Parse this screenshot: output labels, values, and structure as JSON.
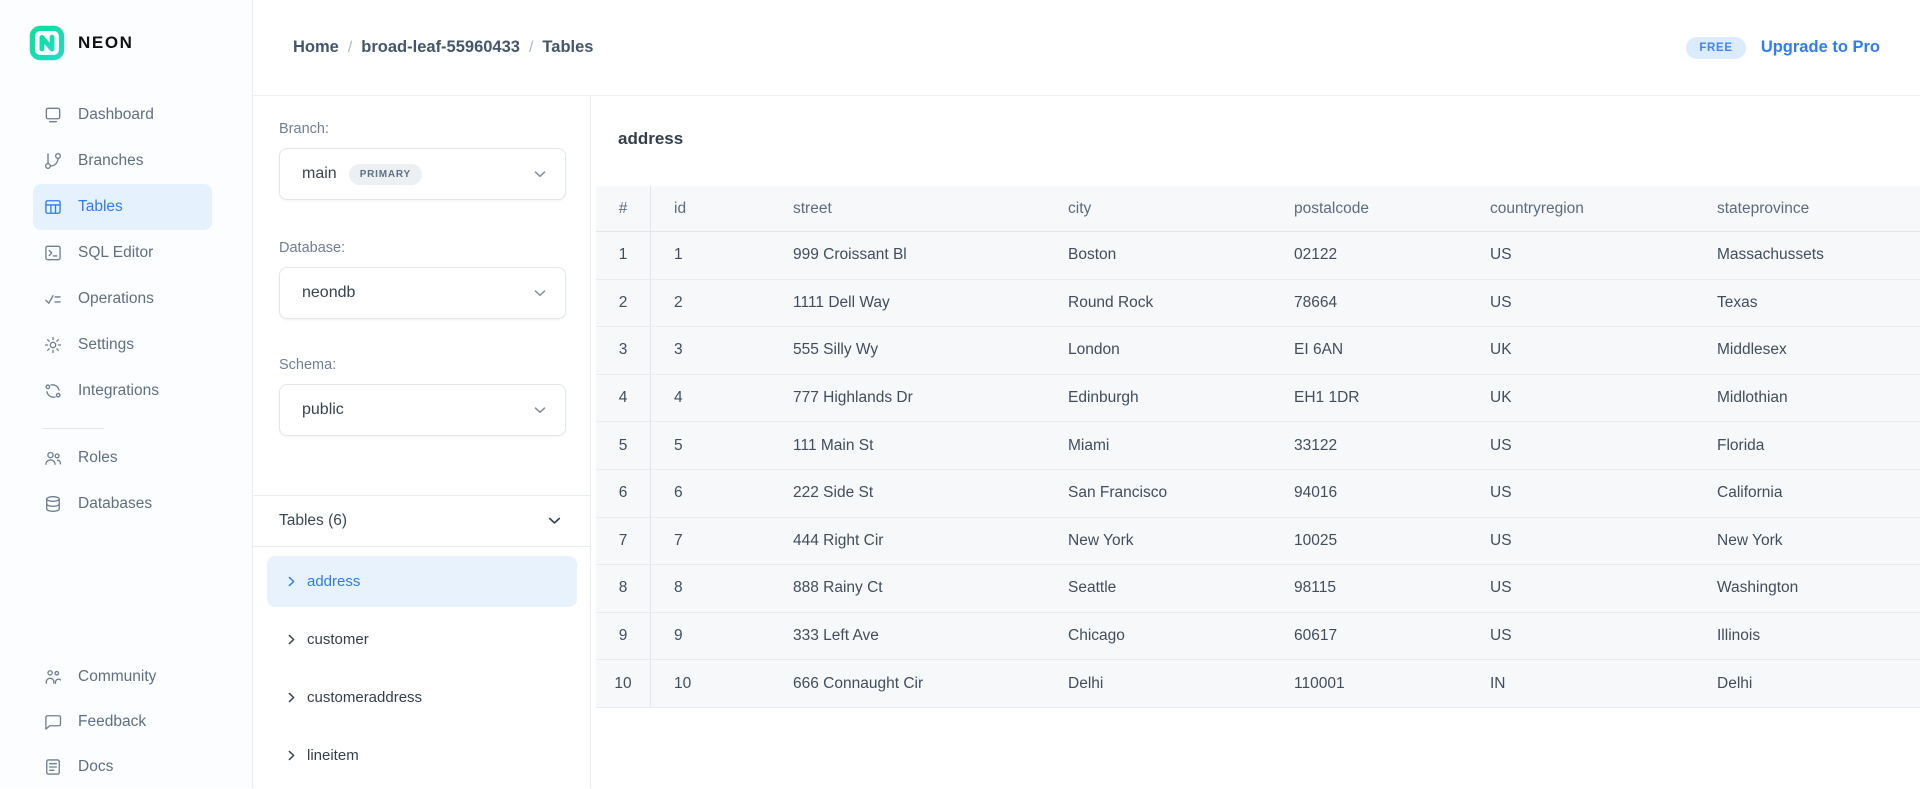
{
  "brand": {
    "name": "NEON"
  },
  "colors": {
    "accent_blue": "#2e7cf6",
    "brand_green": "#00e599",
    "active_item_bg": "#e5f1fd",
    "table_row_bg": "#f6f8fa",
    "badge_bg": "#dcebfe"
  },
  "sidebar": {
    "items": [
      {
        "label": "Dashboard",
        "active": false
      },
      {
        "label": "Branches",
        "active": false
      },
      {
        "label": "Tables",
        "active": true
      },
      {
        "label": "SQL Editor",
        "active": false
      },
      {
        "label": "Operations",
        "active": false
      },
      {
        "label": "Settings",
        "active": false
      },
      {
        "label": "Integrations",
        "active": false
      },
      {
        "label": "Roles",
        "active": false
      },
      {
        "label": "Databases",
        "active": false
      }
    ],
    "footer_items": [
      {
        "label": "Community"
      },
      {
        "label": "Feedback"
      },
      {
        "label": "Docs"
      }
    ]
  },
  "header": {
    "breadcrumb": [
      "Home",
      "broad-leaf-55960433",
      "Tables"
    ],
    "separator": "/",
    "plan_badge": "FREE",
    "upgrade_label": "Upgrade to Pro"
  },
  "panel": {
    "branch_label": "Branch:",
    "branch_value": "main",
    "branch_badge": "PRIMARY",
    "database_label": "Database:",
    "database_value": "neondb",
    "schema_label": "Schema:",
    "schema_value": "public",
    "tables_header": "Tables (6)",
    "tables": [
      {
        "name": "address",
        "selected": true
      },
      {
        "name": "customer",
        "selected": false
      },
      {
        "name": "customeraddress",
        "selected": false
      },
      {
        "name": "lineitem",
        "selected": false
      }
    ]
  },
  "main": {
    "title": "address",
    "table": {
      "columns": [
        "#",
        "id",
        "street",
        "city",
        "postalcode",
        "countryregion",
        "stateprovince"
      ],
      "rows": [
        [
          "1",
          "1",
          "999 Croissant Bl",
          "Boston",
          "02122",
          "US",
          "Massachussets"
        ],
        [
          "2",
          "2",
          "1111 Dell Way",
          "Round Rock",
          "78664",
          "US",
          "Texas"
        ],
        [
          "3",
          "3",
          "555 Silly Wy",
          "London",
          "EI 6AN",
          "UK",
          "Middlesex"
        ],
        [
          "4",
          "4",
          "777 Highlands Dr",
          "Edinburgh",
          "EH1 1DR",
          "UK",
          "Midlothian"
        ],
        [
          "5",
          "5",
          "111 Main St",
          "Miami",
          "33122",
          "US",
          "Florida"
        ],
        [
          "6",
          "6",
          "222 Side St",
          "San Francisco",
          "94016",
          "US",
          "California"
        ],
        [
          "7",
          "7",
          "444 Right Cir",
          "New York",
          "10025",
          "US",
          "New York"
        ],
        [
          "8",
          "8",
          "888 Rainy Ct",
          "Seattle",
          "98115",
          "US",
          "Washington"
        ],
        [
          "9",
          "9",
          "333 Left Ave",
          "Chicago",
          "60617",
          "US",
          "Illinois"
        ],
        [
          "10",
          "10",
          "666 Connaught Cir",
          "Delhi",
          "110001",
          "IN",
          "Delhi"
        ]
      ]
    }
  }
}
